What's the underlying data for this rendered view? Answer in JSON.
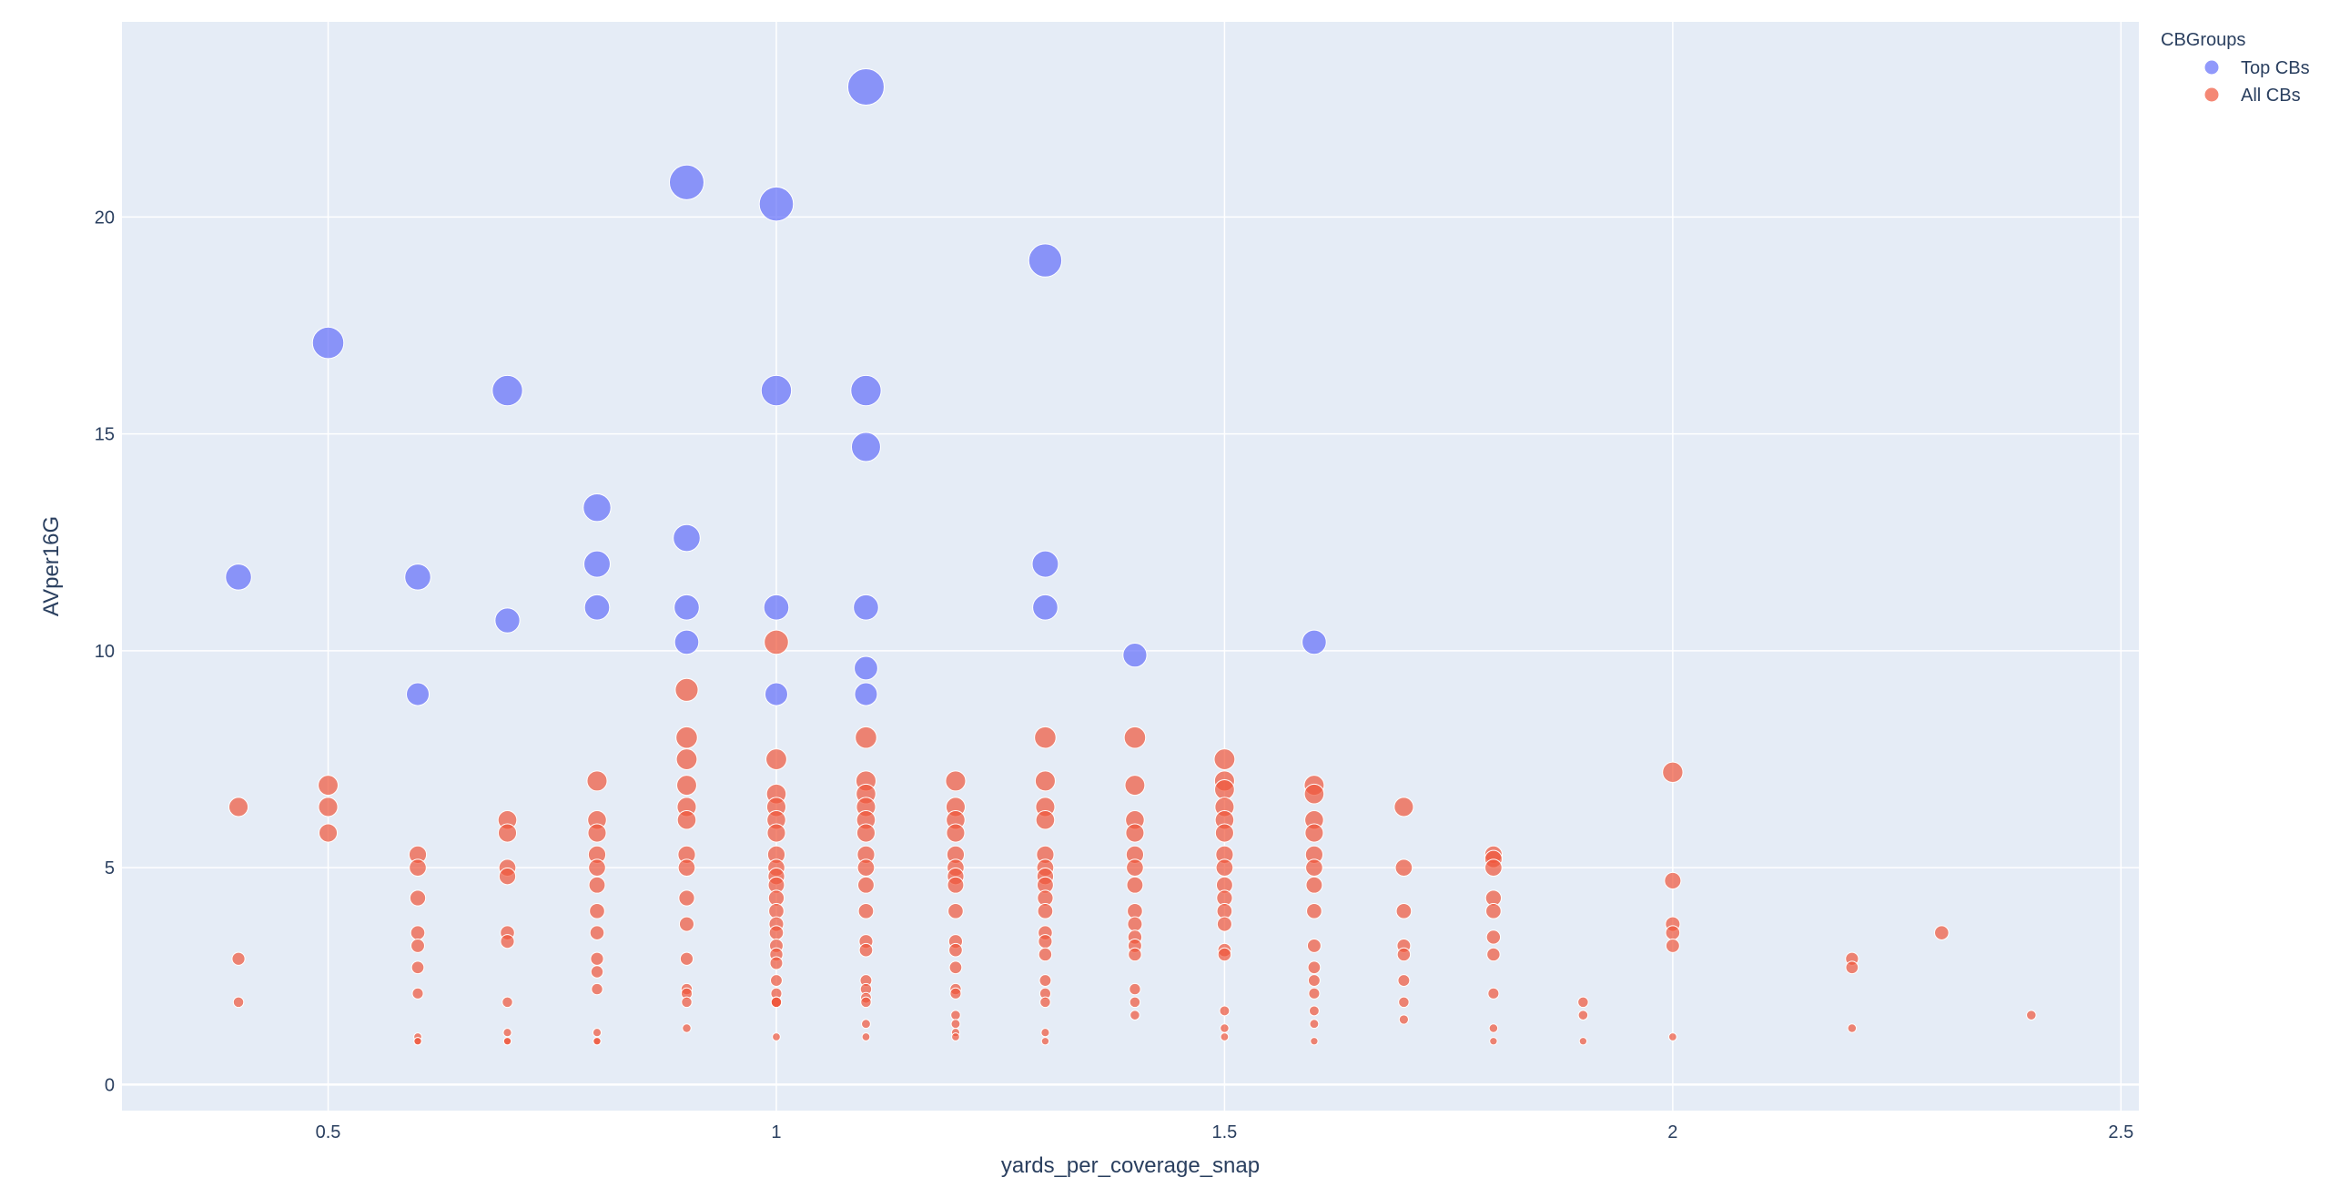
{
  "chart_data": {
    "type": "scatter",
    "title": "",
    "xlabel": "yards_per_coverage_snap",
    "ylabel": "AVper16G",
    "xlim": [
      0.27,
      2.52
    ],
    "ylim": [
      -0.6,
      24.5
    ],
    "xticks": [
      0.5,
      1,
      1.5,
      2,
      2.5
    ],
    "xtick_labels": [
      "0.5",
      "1",
      "1.5",
      "2",
      "2.5"
    ],
    "yticks": [
      0,
      5,
      10,
      15,
      20
    ],
    "ytick_labels": [
      "0",
      "5",
      "10",
      "15",
      "20"
    ],
    "grid": true,
    "legend": {
      "title": "CBGroups",
      "position": "top-right",
      "entries": [
        "Top CBs",
        "All CBs"
      ]
    },
    "size_encodes": "AVper16G",
    "series": [
      {
        "name": "Top CBs",
        "color": "#636efa",
        "x": [
          0.4,
          0.5,
          0.6,
          0.6,
          0.7,
          0.7,
          0.8,
          0.8,
          0.8,
          0.9,
          0.9,
          0.9,
          0.9,
          1.0,
          1.0,
          1.0,
          1.0,
          1.1,
          1.1,
          1.1,
          1.1,
          1.1,
          1.1,
          1.3,
          1.3,
          1.3,
          1.4,
          1.6
        ],
        "y": [
          11.7,
          17.1,
          11.7,
          9.0,
          16.0,
          10.7,
          13.3,
          12.0,
          11.0,
          20.8,
          12.6,
          11.0,
          10.2,
          20.3,
          16.0,
          11.0,
          9.0,
          23.0,
          16.0,
          14.7,
          11.0,
          9.6,
          9.0,
          19.0,
          12.0,
          11.0,
          9.9,
          10.2
        ]
      },
      {
        "name": "All CBs",
        "color": "#ef553b",
        "x": [
          0.4,
          0.4,
          0.4,
          0.5,
          0.5,
          0.5,
          0.6,
          0.6,
          0.6,
          0.6,
          0.6,
          0.6,
          0.6,
          0.6,
          0.6,
          0.6,
          0.7,
          0.7,
          0.7,
          0.7,
          0.7,
          0.7,
          0.7,
          0.7,
          0.7,
          0.7,
          0.8,
          0.8,
          0.8,
          0.8,
          0.8,
          0.8,
          0.8,
          0.8,
          0.8,
          0.8,
          0.8,
          0.8,
          0.8,
          0.8,
          0.9,
          0.9,
          0.9,
          0.9,
          0.9,
          0.9,
          0.9,
          0.9,
          0.9,
          0.9,
          0.9,
          0.9,
          0.9,
          0.9,
          0.9,
          1.0,
          1.0,
          1.0,
          1.0,
          1.0,
          1.0,
          1.0,
          1.0,
          1.0,
          1.0,
          1.0,
          1.0,
          1.0,
          1.0,
          1.0,
          1.0,
          1.0,
          1.0,
          1.0,
          1.0,
          1.0,
          1.0,
          1.0,
          1.1,
          1.1,
          1.1,
          1.1,
          1.1,
          1.1,
          1.1,
          1.1,
          1.1,
          1.1,
          1.1,
          1.1,
          1.1,
          1.1,
          1.1,
          1.1,
          1.1,
          1.1,
          1.2,
          1.2,
          1.2,
          1.2,
          1.2,
          1.2,
          1.2,
          1.2,
          1.2,
          1.2,
          1.2,
          1.2,
          1.2,
          1.2,
          1.2,
          1.2,
          1.2,
          1.2,
          1.3,
          1.3,
          1.3,
          1.3,
          1.3,
          1.3,
          1.3,
          1.3,
          1.3,
          1.3,
          1.3,
          1.3,
          1.3,
          1.3,
          1.3,
          1.3,
          1.3,
          1.3,
          1.4,
          1.4,
          1.4,
          1.4,
          1.4,
          1.4,
          1.4,
          1.4,
          1.4,
          1.4,
          1.4,
          1.4,
          1.4,
          1.4,
          1.4,
          1.5,
          1.5,
          1.5,
          1.5,
          1.5,
          1.5,
          1.5,
          1.5,
          1.5,
          1.5,
          1.5,
          1.5,
          1.5,
          1.5,
          1.5,
          1.5,
          1.5,
          1.6,
          1.6,
          1.6,
          1.6,
          1.6,
          1.6,
          1.6,
          1.6,
          1.6,
          1.6,
          1.6,
          1.6,
          1.6,
          1.6,
          1.6,
          1.7,
          1.7,
          1.7,
          1.7,
          1.7,
          1.7,
          1.7,
          1.7,
          1.8,
          1.8,
          1.8,
          1.8,
          1.8,
          1.8,
          1.8,
          1.8,
          1.8,
          1.8,
          1.9,
          1.9,
          1.9,
          2.0,
          2.0,
          2.0,
          2.0,
          2.0,
          2.0,
          2.2,
          2.2,
          2.2,
          2.3,
          2.4
        ],
        "y": [
          6.4,
          2.9,
          1.9,
          6.9,
          6.4,
          5.8,
          5.3,
          5.0,
          4.3,
          3.5,
          3.2,
          2.7,
          2.1,
          1.1,
          1.0,
          1.0,
          6.1,
          5.8,
          5.0,
          4.8,
          3.5,
          3.3,
          1.9,
          1.2,
          1.0,
          1.0,
          7.0,
          6.1,
          5.8,
          5.3,
          5.0,
          4.6,
          4.0,
          3.5,
          2.9,
          2.6,
          2.2,
          1.2,
          1.0,
          1.0,
          9.1,
          8.0,
          7.5,
          6.9,
          6.4,
          6.1,
          5.3,
          5.0,
          4.3,
          3.7,
          2.9,
          2.2,
          2.1,
          1.9,
          1.3,
          10.2,
          7.5,
          6.7,
          6.4,
          6.1,
          5.8,
          5.3,
          5.0,
          4.8,
          4.6,
          4.3,
          4.0,
          3.7,
          3.5,
          3.2,
          3.0,
          2.8,
          2.4,
          2.1,
          1.9,
          1.9,
          1.9,
          1.1,
          8.0,
          7.0,
          6.7,
          6.4,
          6.1,
          5.8,
          5.3,
          5.0,
          4.6,
          4.0,
          3.3,
          3.1,
          2.4,
          2.2,
          2.0,
          1.9,
          1.4,
          1.1,
          7.0,
          6.4,
          6.1,
          5.8,
          5.3,
          5.0,
          4.8,
          4.6,
          4.0,
          3.3,
          3.1,
          2.7,
          2.2,
          2.1,
          1.6,
          1.4,
          1.2,
          1.1,
          8.0,
          7.0,
          6.4,
          6.1,
          5.3,
          5.0,
          4.8,
          4.6,
          4.3,
          4.0,
          3.5,
          3.3,
          3.0,
          2.4,
          2.1,
          1.9,
          1.2,
          1.0,
          8.0,
          6.9,
          6.1,
          5.8,
          5.3,
          5.0,
          4.6,
          4.0,
          3.7,
          3.4,
          3.2,
          3.0,
          2.2,
          1.9,
          1.6,
          7.5,
          7.0,
          6.8,
          6.4,
          6.1,
          5.8,
          5.3,
          5.0,
          4.6,
          4.3,
          4.0,
          3.7,
          3.1,
          3.0,
          1.7,
          1.3,
          1.1,
          6.9,
          6.7,
          6.1,
          5.8,
          5.3,
          5.0,
          4.6,
          4.0,
          3.2,
          2.7,
          2.4,
          2.1,
          1.7,
          1.4,
          1.0,
          6.4,
          5.0,
          4.0,
          3.2,
          3.0,
          2.4,
          1.9,
          1.5,
          5.3,
          5.2,
          5.0,
          4.3,
          4.0,
          3.4,
          3.0,
          2.1,
          1.3,
          1.0,
          1.9,
          1.6,
          1.0,
          7.2,
          4.7,
          3.7,
          3.5,
          3.2,
          1.1,
          2.9,
          2.7,
          1.3,
          3.5,
          1.6
        ]
      }
    ]
  }
}
